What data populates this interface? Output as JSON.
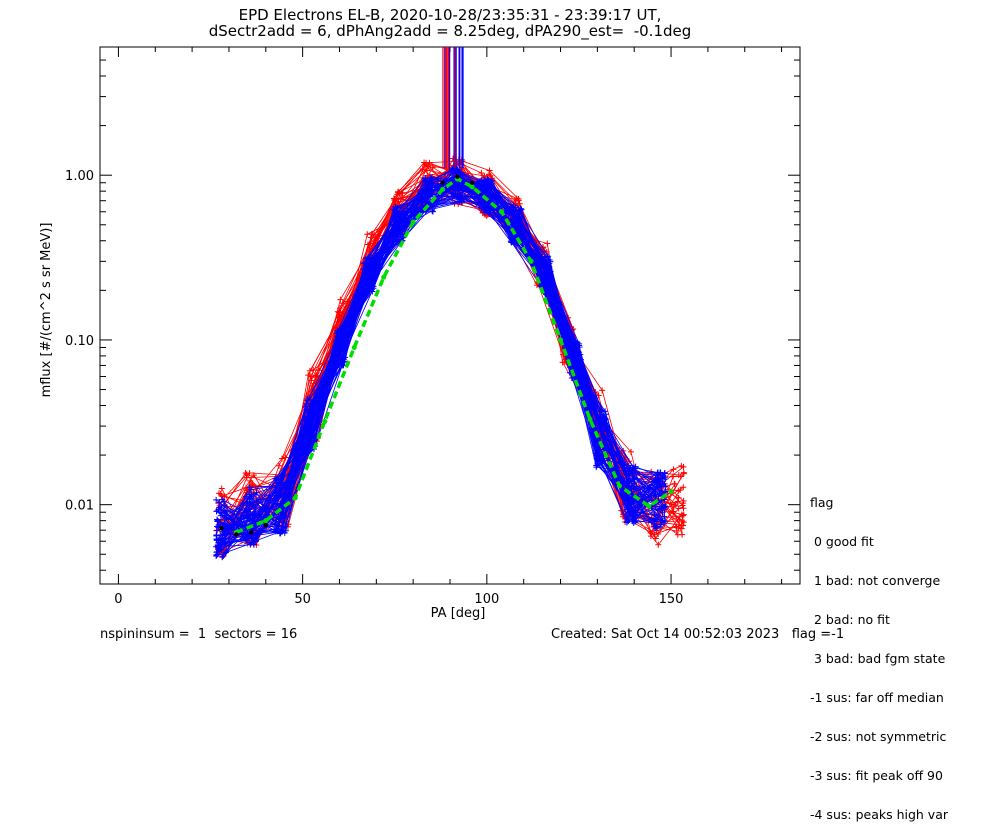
{
  "chart_data": {
    "type": "line",
    "title_line1": "EPD Electrons EL-B, 2020-10-28/23:35:31 - 23:39:17 UT,",
    "title_line2": "dSectr2add = 6, dPhAng2add = 8.25deg, dPA290_est=  -0.1deg",
    "xlabel": "PA [deg]",
    "ylabel": "mflux [#/(cm^2 s sr MeV)]",
    "xlim": [
      -5,
      185
    ],
    "ylim": [
      0.0033,
      6.0
    ],
    "yscale": "log",
    "xticks": [
      0,
      50,
      100,
      150
    ],
    "xtick_labels": [
      "0",
      "50",
      "100",
      "150"
    ],
    "yticks": [
      0.01,
      0.1,
      1.0
    ],
    "ytick_labels": [
      "0.01",
      "0.10",
      "1.00"
    ],
    "grid": false,
    "series": [
      {
        "color": "#ff0000",
        "marker": "+",
        "pa": [
          28,
          36,
          45,
          53,
          61,
          69,
          76,
          84,
          92,
          100,
          108,
          115,
          122,
          130,
          138,
          146,
          152
        ],
        "values": [
          0.0078,
          0.0095,
          0.012,
          0.04,
          0.13,
          0.32,
          0.58,
          0.87,
          0.92,
          0.78,
          0.55,
          0.29,
          0.1,
          0.036,
          0.013,
          0.0095,
          0.011
        ]
      },
      {
        "color": "#0000ff",
        "marker": "+",
        "pa": [
          28,
          36,
          44,
          52,
          60,
          68,
          76,
          84,
          92,
          100,
          108,
          116,
          124,
          131,
          139,
          147
        ],
        "values": [
          0.0072,
          0.0085,
          0.01,
          0.03,
          0.09,
          0.25,
          0.5,
          0.76,
          0.88,
          0.74,
          0.5,
          0.25,
          0.075,
          0.025,
          0.0115,
          0.0105
        ]
      },
      {
        "color": "#00dd00",
        "marker": "dot",
        "pa": [
          32,
          40,
          48,
          56,
          64,
          72,
          80,
          88,
          92,
          96,
          104,
          112,
          120,
          128,
          136,
          144,
          150
        ],
        "values": [
          0.0068,
          0.008,
          0.011,
          0.032,
          0.09,
          0.24,
          0.52,
          0.82,
          0.95,
          0.85,
          0.6,
          0.3,
          0.1,
          0.033,
          0.013,
          0.0098,
          0.012
        ]
      },
      {
        "color": "#000000",
        "marker": "dot",
        "pa": [
          28,
          32,
          36,
          40,
          88,
          92,
          96
        ],
        "values": [
          0.0072,
          0.0066,
          0.0068,
          0.0075,
          0.9,
          0.98,
          0.9
        ]
      }
    ],
    "legend": {
      "title": "flag",
      "position": "right, outside plot, bottom",
      "entries": [
        " 0 good fit",
        " 1 bad: not converge",
        " 2 bad: no fit",
        " 3 bad: bad fgm state",
        "-1 sus: far off median",
        "-2 sus: not symmetric",
        "-3 sus: fit peak off 90",
        "-4 sus: peaks high var"
      ]
    }
  },
  "footer": {
    "left": "nspininsum =  1  sectors = 16",
    "right": "Created: Sat Oct 14 00:52:03 2023   flag =-1"
  },
  "colors": {
    "red": "#ff0000",
    "blue": "#0000ff",
    "green": "#00dd00",
    "black": "#000000"
  }
}
